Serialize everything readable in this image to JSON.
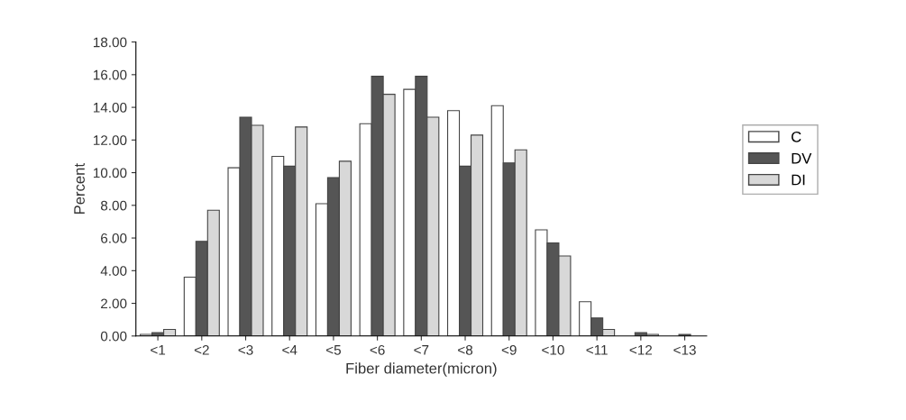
{
  "chart_data": {
    "type": "bar",
    "xlabel": "Fiber diameter(micron)",
    "ylabel": "Percent",
    "categories": [
      "<1",
      "<2",
      "<3",
      "<4",
      "<5",
      "<6",
      "<7",
      "<8",
      "<9",
      "<10",
      "<11",
      "<12",
      "<13"
    ],
    "series": [
      {
        "name": "C",
        "color": "#ffffff",
        "values": [
          0.1,
          3.6,
          10.3,
          11.0,
          8.1,
          13.0,
          15.1,
          13.8,
          14.1,
          6.5,
          2.1,
          null,
          null
        ]
      },
      {
        "name": "DV",
        "color": "#555555",
        "values": [
          0.2,
          5.8,
          13.4,
          10.4,
          9.7,
          15.9,
          15.9,
          10.4,
          10.6,
          5.7,
          1.1,
          0.2,
          0.1
        ]
      },
      {
        "name": "DI",
        "color": "#d8d8d8",
        "values": [
          0.4,
          7.7,
          12.9,
          12.8,
          10.7,
          14.8,
          13.4,
          12.3,
          11.4,
          4.9,
          0.4,
          0.1,
          null
        ]
      }
    ],
    "ylim": [
      0,
      18
    ],
    "yticks": [
      {
        "value": 0,
        "label": "0.00"
      },
      {
        "value": 2,
        "label": "2.00"
      },
      {
        "value": 4,
        "label": "4.00"
      },
      {
        "value": 6,
        "label": "6.00"
      },
      {
        "value": 8,
        "label": "8.00"
      },
      {
        "value": 10,
        "label": "10.00"
      },
      {
        "value": 12,
        "label": "12.00"
      },
      {
        "value": 14,
        "label": "14.00"
      },
      {
        "value": 16,
        "label": "16.00"
      },
      {
        "value": 18,
        "label": "18.00"
      }
    ],
    "grid": false,
    "legend": "right"
  }
}
